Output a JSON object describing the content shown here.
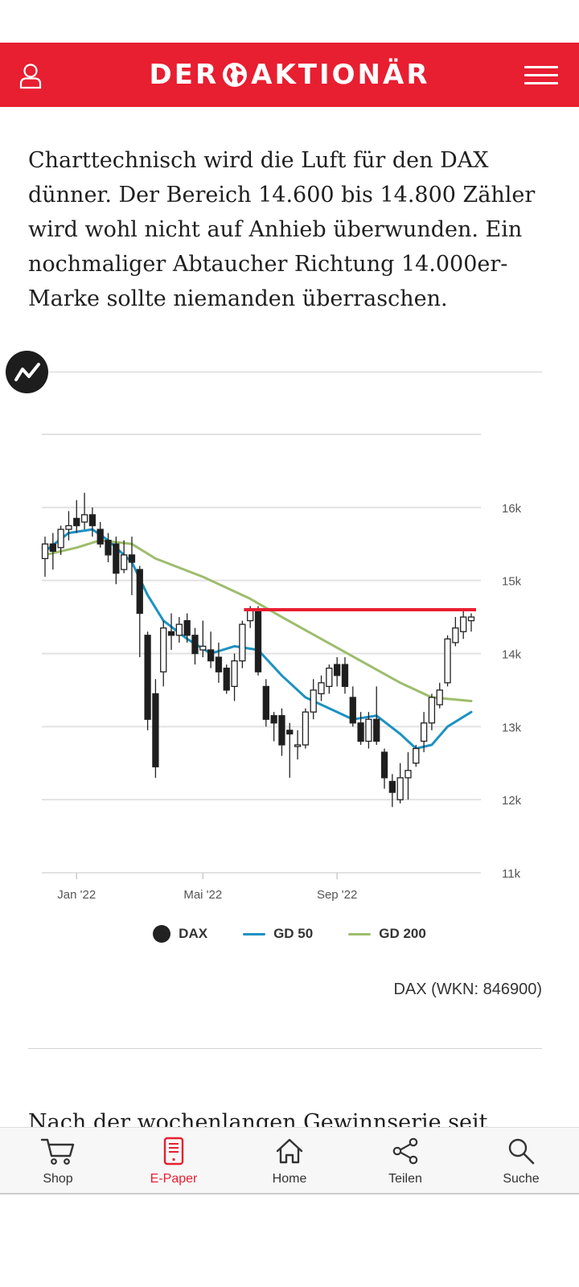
{
  "header": {
    "logo_left": "DER",
    "logo_right": "AKTIONÄR"
  },
  "intro_text": "Charttechnisch wird die Luft für den DAX dünner. Der Bereich 14.600 bis 14.800 Zähler wird wohl nicht auf Anhieb überwunden. Ein nochmaliger Abtaucher Richtung 14.000er-Marke sollte niemanden überraschen.",
  "chart_data": {
    "type": "candlestick",
    "title": "",
    "xlabel": "",
    "ylabel": "",
    "y_ticks": [
      "16k",
      "15k",
      "14k",
      "13k",
      "12k",
      "11k"
    ],
    "y_tick_values": [
      16000,
      15000,
      14000,
      13000,
      12000,
      11000
    ],
    "x_ticks": [
      "Jan '22",
      "Mai '22",
      "Sep '22"
    ],
    "ylim": [
      11000,
      17000
    ],
    "grid": true,
    "legend_position": "bottom",
    "resistance_level": 14600,
    "candles": [
      [
        15300,
        15500,
        15050,
        15600
      ],
      [
        15500,
        15400,
        15150,
        15650
      ],
      [
        15450,
        15700,
        15350,
        15750
      ],
      [
        15700,
        15750,
        15550,
        15950
      ],
      [
        15850,
        15750,
        15650,
        16100
      ],
      [
        15800,
        15900,
        15700,
        16200
      ],
      [
        15900,
        15750,
        15600,
        16000
      ],
      [
        15700,
        15500,
        15450,
        15800
      ],
      [
        15550,
        15350,
        15250,
        15650
      ],
      [
        15500,
        15100,
        14950,
        15600
      ],
      [
        15150,
        15350,
        15100,
        15550
      ],
      [
        15350,
        15250,
        14800,
        15600
      ],
      [
        15150,
        14550,
        13950,
        15200
      ],
      [
        14250,
        13100,
        12950,
        14300
      ],
      [
        13450,
        12450,
        12300,
        13650
      ],
      [
        13750,
        14350,
        13550,
        14450
      ],
      [
        14300,
        14250,
        14050,
        14550
      ],
      [
        14250,
        14400,
        14150,
        14500
      ],
      [
        14450,
        14250,
        14150,
        14550
      ],
      [
        14250,
        14000,
        13850,
        14350
      ],
      [
        14050,
        14100,
        13950,
        14450
      ],
      [
        14050,
        13900,
        13800,
        14300
      ],
      [
        13950,
        13750,
        13600,
        14150
      ],
      [
        13800,
        13500,
        13450,
        13850
      ],
      [
        13550,
        13900,
        13350,
        14000
      ],
      [
        13900,
        14400,
        13800,
        14450
      ],
      [
        14450,
        14600,
        14350,
        14650
      ],
      [
        14600,
        13750,
        13700,
        14650
      ],
      [
        13550,
        13100,
        13000,
        13650
      ],
      [
        13150,
        13050,
        12800,
        13200
      ],
      [
        13150,
        12750,
        12600,
        13250
      ],
      [
        12950,
        12900,
        12300,
        13050
      ],
      [
        12750,
        12750,
        12550,
        12950
      ],
      [
        12750,
        13200,
        12700,
        13250
      ],
      [
        13200,
        13500,
        13100,
        13650
      ],
      [
        13450,
        13600,
        13350,
        13700
      ],
      [
        13550,
        13800,
        13450,
        13850
      ],
      [
        13850,
        13700,
        13550,
        13950
      ],
      [
        13850,
        13550,
        13450,
        13950
      ],
      [
        13400,
        13050,
        13000,
        13550
      ],
      [
        13050,
        12800,
        12750,
        13200
      ],
      [
        12800,
        13100,
        12700,
        13200
      ],
      [
        13100,
        12800,
        12750,
        13550
      ],
      [
        12650,
        12300,
        12150,
        12700
      ],
      [
        12250,
        12100,
        11900,
        12350
      ],
      [
        12000,
        12300,
        11950,
        12500
      ],
      [
        12300,
        12400,
        12000,
        12650
      ],
      [
        12500,
        12700,
        12450,
        12750
      ],
      [
        12800,
        13050,
        12650,
        13200
      ],
      [
        13050,
        13400,
        12950,
        13450
      ],
      [
        13300,
        13500,
        13250,
        13600
      ],
      [
        13600,
        14200,
        13550,
        14250
      ],
      [
        14150,
        14350,
        14100,
        14500
      ],
      [
        14300,
        14500,
        14200,
        14600
      ],
      [
        14450,
        14500,
        14300,
        14550
      ]
    ],
    "series": [
      {
        "name": "GD 50",
        "color": "#1b92c2",
        "values": [
          [
            0,
            15400
          ],
          [
            3,
            15650
          ],
          [
            6,
            15700
          ],
          [
            8,
            15550
          ],
          [
            11,
            15250
          ],
          [
            13,
            14800
          ],
          [
            15,
            14450
          ],
          [
            18,
            14200
          ],
          [
            21,
            14000
          ],
          [
            24,
            14100
          ],
          [
            27,
            14050
          ],
          [
            30,
            13700
          ],
          [
            33,
            13400
          ],
          [
            36,
            13250
          ],
          [
            39,
            13100
          ],
          [
            42,
            13150
          ],
          [
            45,
            12900
          ],
          [
            47,
            12700
          ],
          [
            49,
            12750
          ],
          [
            51,
            13000
          ],
          [
            54,
            13200
          ]
        ]
      },
      {
        "name": "GD 200",
        "color": "#9dbd6d",
        "values": [
          [
            0,
            15350
          ],
          [
            4,
            15450
          ],
          [
            7,
            15550
          ],
          [
            11,
            15500
          ],
          [
            14,
            15300
          ],
          [
            20,
            15050
          ],
          [
            26,
            14750
          ],
          [
            30,
            14500
          ],
          [
            35,
            14200
          ],
          [
            40,
            13900
          ],
          [
            45,
            13600
          ],
          [
            49,
            13400
          ],
          [
            54,
            13350
          ]
        ]
      }
    ],
    "legend": [
      {
        "label": "DAX",
        "kind": "dot",
        "color": "#222222"
      },
      {
        "label": "GD 50",
        "kind": "line",
        "color": "#1b92c2"
      },
      {
        "label": "GD 200",
        "kind": "line",
        "color": "#9dbd6d"
      }
    ],
    "resistance_color": "#e81e31"
  },
  "chart_caption": "DAX (WKN: 846900)",
  "next_paragraph_start": "Nach der wochenlangen Gewinnserie seit",
  "nav": [
    {
      "id": "shop",
      "label": "Shop"
    },
    {
      "id": "epaper",
      "label": "E-Paper",
      "active": true
    },
    {
      "id": "home",
      "label": "Home"
    },
    {
      "id": "teilen",
      "label": "Teilen"
    },
    {
      "id": "suche",
      "label": "Suche"
    }
  ]
}
